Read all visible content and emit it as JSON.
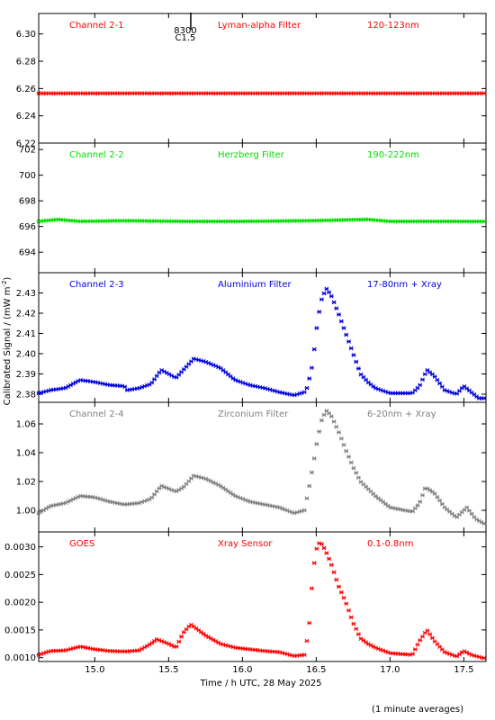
{
  "chart_data": {
    "type": "scatter",
    "xlabel": "Time / h UTC, 28 May 2025",
    "ylabel": "Calibrated Signal / (mW m",
    "ylabel_sup": "-2",
    "ylabel_close": ")",
    "xlim": [
      14.62,
      17.65
    ],
    "xticks": [
      15.0,
      15.5,
      16.0,
      16.5,
      17.0,
      17.5
    ],
    "xtick_labels": [
      "15.0",
      "15.5",
      "16.0",
      "16.5",
      "17.0",
      "17.5"
    ],
    "footnote": "(1 minute averages)",
    "panels": [
      {
        "channel": "Channel 2-1",
        "filter": "Lyman-alpha Filter",
        "band": "120-123nm",
        "color": "#ff0000",
        "ylim": [
          6.22,
          6.315
        ],
        "yticks": [
          6.22,
          6.24,
          6.26,
          6.28,
          6.3
        ],
        "ytick_labels": [
          "6.22",
          "6.24",
          "6.26",
          "6.28",
          "6.30"
        ],
        "annotation": {
          "x": 15.65,
          "line1": "8300",
          "line2": "C1.5"
        },
        "curve": [
          [
            14.62,
            6.2565
          ],
          [
            17.65,
            6.2565
          ]
        ]
      },
      {
        "channel": "Channel 2-2",
        "filter": "Herzberg Filter",
        "band": "190-222nm",
        "color": "#00dd00",
        "ylim": [
          692.4,
          702.5
        ],
        "yticks": [
          694,
          696,
          698,
          700,
          702
        ],
        "ytick_labels": [
          "694",
          "696",
          "698",
          "700",
          "702"
        ],
        "curve": [
          [
            14.62,
            696.4
          ],
          [
            14.75,
            696.55
          ],
          [
            14.9,
            696.4
          ],
          [
            15.2,
            696.45
          ],
          [
            15.6,
            696.4
          ],
          [
            16.0,
            696.4
          ],
          [
            16.45,
            696.45
          ],
          [
            16.85,
            696.55
          ],
          [
            17.0,
            696.4
          ],
          [
            17.65,
            696.4
          ]
        ]
      },
      {
        "channel": "Channel 2-3",
        "filter": "Aluminium Filter",
        "band": "17-80nm + Xray",
        "color": "#0000dd",
        "ylim": [
          2.376,
          2.44
        ],
        "yticks": [
          2.38,
          2.39,
          2.4,
          2.41,
          2.42,
          2.43
        ],
        "ytick_labels": [
          "2.38",
          "2.39",
          "2.40",
          "2.41",
          "2.42",
          "2.43"
        ],
        "curve": [
          [
            14.62,
            2.3805
          ],
          [
            14.7,
            2.382
          ],
          [
            14.8,
            2.383
          ],
          [
            14.9,
            2.387
          ],
          [
            15.0,
            2.386
          ],
          [
            15.1,
            2.3845
          ],
          [
            15.2,
            2.384
          ],
          [
            15.22,
            2.382
          ],
          [
            15.3,
            2.383
          ],
          [
            15.38,
            2.385
          ],
          [
            15.45,
            2.392
          ],
          [
            15.55,
            2.388
          ],
          [
            15.6,
            2.392
          ],
          [
            15.67,
            2.3975
          ],
          [
            15.75,
            2.396
          ],
          [
            15.85,
            2.393
          ],
          [
            15.95,
            2.387
          ],
          [
            16.05,
            2.3845
          ],
          [
            16.15,
            2.383
          ],
          [
            16.25,
            2.381
          ],
          [
            16.35,
            2.3795
          ],
          [
            16.42,
            2.381
          ],
          [
            16.44,
            2.3835
          ],
          [
            16.47,
            2.393
          ],
          [
            16.49,
            2.404
          ],
          [
            16.51,
            2.417
          ],
          [
            16.54,
            2.428
          ],
          [
            16.57,
            2.432
          ],
          [
            16.6,
            2.429
          ],
          [
            16.65,
            2.42
          ],
          [
            16.7,
            2.41
          ],
          [
            16.75,
            2.4
          ],
          [
            16.8,
            2.39
          ],
          [
            16.85,
            2.386
          ],
          [
            16.9,
            2.383
          ],
          [
            17.0,
            2.3805
          ],
          [
            17.15,
            2.3805
          ],
          [
            17.2,
            2.384
          ],
          [
            17.25,
            2.392
          ],
          [
            17.3,
            2.389
          ],
          [
            17.37,
            2.382
          ],
          [
            17.45,
            2.38
          ],
          [
            17.5,
            2.384
          ],
          [
            17.55,
            2.381
          ],
          [
            17.6,
            2.378
          ],
          [
            17.65,
            2.378
          ]
        ]
      },
      {
        "channel": "Channel 2-4",
        "filter": "Zirconium Filter",
        "band": "6-20nm + Xray",
        "color": "#808080",
        "ylim": [
          0.985,
          1.075
        ],
        "yticks": [
          1.0,
          1.02,
          1.04,
          1.06
        ],
        "ytick_labels": [
          "1.00",
          "1.02",
          "1.04",
          "1.06"
        ],
        "curve": [
          [
            14.62,
            0.998
          ],
          [
            14.7,
            1.003
          ],
          [
            14.8,
            1.005
          ],
          [
            14.9,
            1.01
          ],
          [
            15.0,
            1.009
          ],
          [
            15.1,
            1.006
          ],
          [
            15.2,
            1.004
          ],
          [
            15.3,
            1.005
          ],
          [
            15.38,
            1.008
          ],
          [
            15.45,
            1.017
          ],
          [
            15.55,
            1.013
          ],
          [
            15.6,
            1.016
          ],
          [
            15.67,
            1.024
          ],
          [
            15.75,
            1.022
          ],
          [
            15.85,
            1.017
          ],
          [
            15.95,
            1.01
          ],
          [
            16.05,
            1.006
          ],
          [
            16.15,
            1.004
          ],
          [
            16.25,
            1.002
          ],
          [
            16.35,
            0.998
          ],
          [
            16.42,
            1.0
          ],
          [
            16.45,
            1.015
          ],
          [
            16.48,
            1.032
          ],
          [
            16.51,
            1.05
          ],
          [
            16.54,
            1.064
          ],
          [
            16.57,
            1.069
          ],
          [
            16.6,
            1.066
          ],
          [
            16.65,
            1.055
          ],
          [
            16.7,
            1.042
          ],
          [
            16.75,
            1.03
          ],
          [
            16.8,
            1.02
          ],
          [
            16.9,
            1.01
          ],
          [
            17.0,
            1.002
          ],
          [
            17.15,
            0.999
          ],
          [
            17.2,
            1.005
          ],
          [
            17.24,
            1.016
          ],
          [
            17.3,
            1.012
          ],
          [
            17.37,
            1.002
          ],
          [
            17.45,
            0.995
          ],
          [
            17.52,
            1.002
          ],
          [
            17.58,
            0.994
          ],
          [
            17.65,
            0.99
          ]
        ]
      },
      {
        "channel": "GOES",
        "filter": "Xray Sensor",
        "band": "0.1-0.8nm",
        "color": "#ff0000",
        "ylim": [
          0.00093,
          0.00327
        ],
        "yticks": [
          0.001,
          0.0015,
          0.002,
          0.0025,
          0.003
        ],
        "ytick_labels": [
          "0.0010",
          "0.0015",
          "0.0020",
          "0.0025",
          "0.0030"
        ],
        "curve": [
          [
            14.62,
            0.00105
          ],
          [
            14.7,
            0.00112
          ],
          [
            14.8,
            0.00113
          ],
          [
            14.9,
            0.0012
          ],
          [
            15.0,
            0.00115
          ],
          [
            15.1,
            0.00112
          ],
          [
            15.2,
            0.00111
          ],
          [
            15.3,
            0.00113
          ],
          [
            15.38,
            0.00125
          ],
          [
            15.42,
            0.00133
          ],
          [
            15.5,
            0.00125
          ],
          [
            15.55,
            0.00118
          ],
          [
            15.6,
            0.00145
          ],
          [
            15.65,
            0.0016
          ],
          [
            15.75,
            0.0014
          ],
          [
            15.85,
            0.00125
          ],
          [
            15.95,
            0.00118
          ],
          [
            16.05,
            0.00115
          ],
          [
            16.15,
            0.00112
          ],
          [
            16.25,
            0.0011
          ],
          [
            16.35,
            0.00103
          ],
          [
            16.42,
            0.00105
          ],
          [
            16.45,
            0.0015
          ],
          [
            16.47,
            0.00225
          ],
          [
            16.49,
            0.0028
          ],
          [
            16.51,
            0.00305
          ],
          [
            16.53,
            0.00308
          ],
          [
            16.56,
            0.00295
          ],
          [
            16.6,
            0.0027
          ],
          [
            16.65,
            0.0023
          ],
          [
            16.7,
            0.002
          ],
          [
            16.75,
            0.00163
          ],
          [
            16.8,
            0.00135
          ],
          [
            16.85,
            0.00125
          ],
          [
            16.9,
            0.00118
          ],
          [
            17.0,
            0.00108
          ],
          [
            17.15,
            0.00105
          ],
          [
            17.2,
            0.0013
          ],
          [
            17.25,
            0.0015
          ],
          [
            17.3,
            0.0013
          ],
          [
            17.37,
            0.0011
          ],
          [
            17.45,
            0.00102
          ],
          [
            17.5,
            0.00112
          ],
          [
            17.55,
            0.00105
          ],
          [
            17.65,
            0.00098
          ]
        ]
      }
    ]
  }
}
